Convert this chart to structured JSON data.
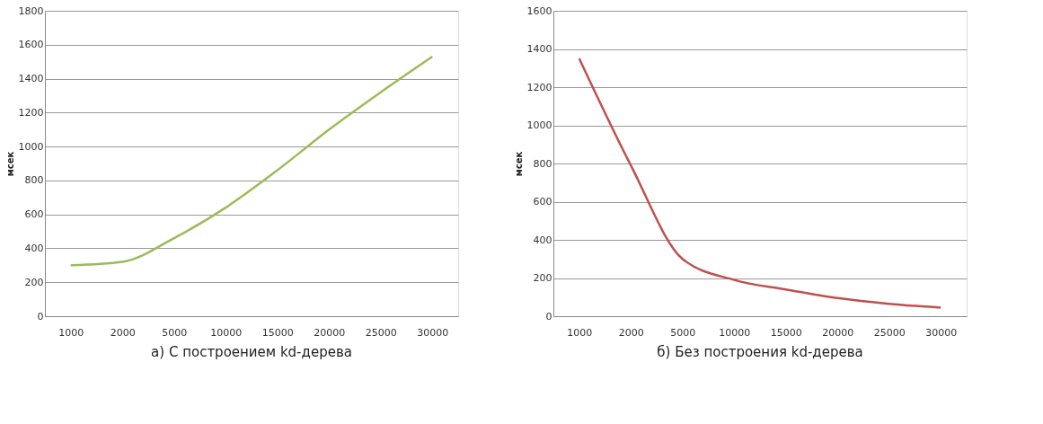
{
  "chart_data": [
    {
      "type": "line",
      "title": "а) С построением kd-дерева",
      "ylabel": "мсек",
      "categories": [
        "1000",
        "2000",
        "5000",
        "10000",
        "15000",
        "20000",
        "25000",
        "30000"
      ],
      "series": [
        {
          "color": "#9bbb59",
          "values": [
            300,
            320,
            460,
            640,
            860,
            1100,
            1320,
            1530
          ]
        }
      ],
      "ylim": [
        0,
        1800
      ],
      "yticks": [
        0,
        200,
        400,
        600,
        800,
        1000,
        1200,
        1400,
        1600,
        1800
      ],
      "grid": "y",
      "legend": false,
      "marker": "none",
      "line_style": "solid"
    },
    {
      "type": "line",
      "title": "б) Без построения kd-дерева",
      "ylabel": "мсек",
      "categories": [
        "1000",
        "2000",
        "5000",
        "10000",
        "15000",
        "20000",
        "25000",
        "30000"
      ],
      "series": [
        {
          "color": "#c0504d",
          "values": [
            1350,
            790,
            300,
            190,
            140,
            95,
            65,
            45
          ]
        }
      ],
      "ylim": [
        0,
        1600
      ],
      "yticks": [
        0,
        200,
        400,
        600,
        800,
        1000,
        1200,
        1400,
        1600
      ],
      "grid": "y",
      "legend": false,
      "marker": "none",
      "line_style": "solid"
    }
  ]
}
